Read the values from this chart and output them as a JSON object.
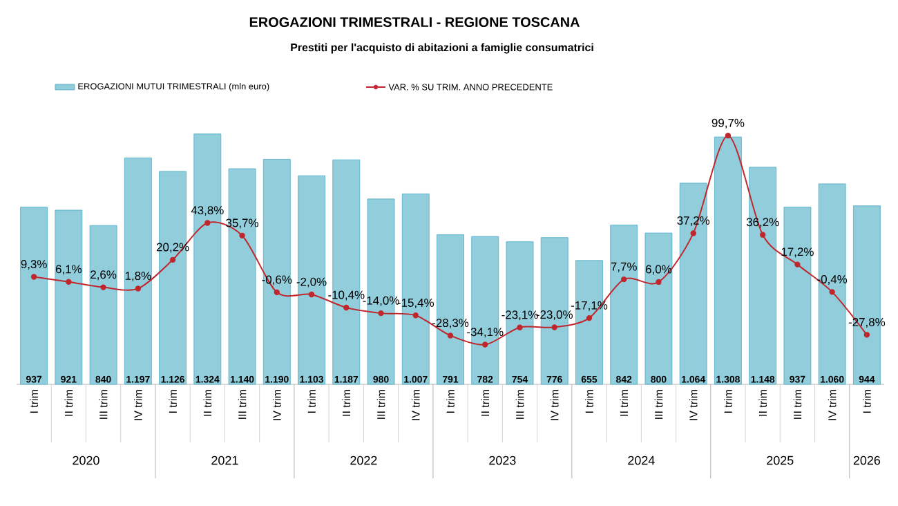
{
  "chart_data": {
    "type": "bar",
    "title": "EROGAZIONI TRIMESTRALI - REGIONE TOSCANA",
    "subtitle": "Prestiti per l'acquisto di abitazioni a famiglie consumatrici",
    "categories": [
      "I trim",
      "II trim",
      "III trim",
      "IV trim",
      "I trim",
      "II trim",
      "III trim",
      "IV trim",
      "I trim",
      "II trim",
      "III trim",
      "IV trim",
      "I trim",
      "II trim",
      "III trim",
      "IV trim",
      "I trim",
      "II trim",
      "III trim",
      "IV trim",
      "I trim",
      "II trim",
      "III trim",
      "IV trim",
      "I trim"
    ],
    "annotations": [
      "2020",
      "2021",
      "2022",
      "2023",
      "2024",
      "2025",
      "2026"
    ],
    "series": [
      {
        "name": "EROGAZIONI MUTUI TRIMESTRALI (mln euro)",
        "color": "#92cddc",
        "values": [
          937,
          921,
          840,
          1197,
          1126,
          1324,
          1140,
          1190,
          1103,
          1187,
          980,
          1007,
          791,
          782,
          754,
          776,
          655,
          842,
          800,
          1064,
          1308,
          1148,
          937,
          1060,
          944
        ],
        "value_labels": [
          "937",
          "921",
          "840",
          "1.197",
          "1.126",
          "1.324",
          "1.140",
          "1.190",
          "1.103",
          "1.187",
          "980",
          "1.007",
          "791",
          "782",
          "754",
          "776",
          "655",
          "842",
          "800",
          "1.064",
          "1.308",
          "1.148",
          "937",
          "1.060",
          "944"
        ]
      },
      {
        "name": "VAR. % SU TRIM. ANNO PRECEDENTE",
        "type": "line",
        "axis": "y2",
        "color": "#c0272d",
        "values": [
          9.3,
          6.1,
          2.6,
          1.8,
          20.2,
          43.8,
          35.7,
          -0.6,
          -2.0,
          -10.4,
          -14.0,
          -15.4,
          -28.3,
          -34.1,
          -23.1,
          -23.0,
          -17.1,
          7.7,
          6.0,
          37.2,
          99.7,
          36.2,
          17.2,
          -0.4,
          -27.8
        ],
        "value_labels": [
          "9,3%",
          "6,1%",
          "2,6%",
          "1,8%",
          "20,2%",
          "43,8%",
          "35,7%",
          "-0,6%",
          "-2,0%",
          "-10,4%",
          "-14,0%",
          "-15,4%",
          "-28,3%",
          "-34,1%",
          "-23,1%",
          "-23,0%",
          "-17,1%",
          "7,7%",
          "6,0%",
          "37,2%",
          "99,7%",
          "36,2%",
          "17,2%",
          "-0,4%",
          "-27,8%"
        ]
      }
    ],
    "tick_labels": "x",
    "legend": "top",
    "marker": "circle"
  }
}
